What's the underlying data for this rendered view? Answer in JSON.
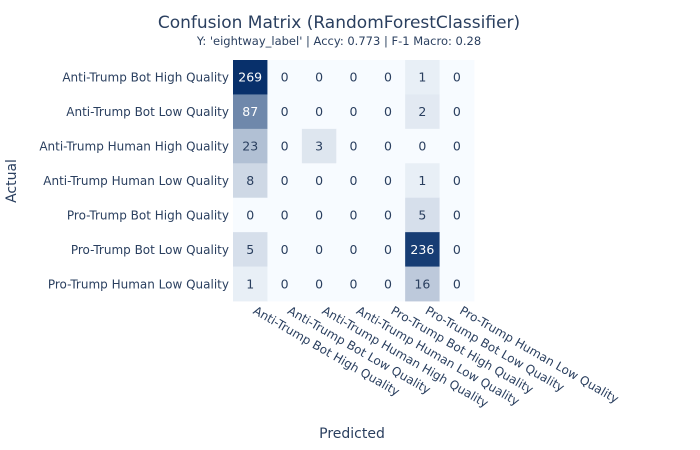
{
  "chart_data": {
    "type": "heatmap",
    "title": "Confusion Matrix (RandomForestClassifier)",
    "subtitle": "Y: 'eightway_label' | Accy: 0.773 | F-1 Macro: 0.28",
    "xlabel": "Predicted",
    "ylabel": "Actual",
    "rows": [
      "Anti-Trump Bot High Quality",
      "Anti-Trump Bot Low Quality",
      "Anti-Trump Human High Quality",
      "Anti-Trump Human Low Quality",
      "Pro-Trump Bot High Quality",
      "Pro-Trump Bot Low Quality",
      "Pro-Trump Human Low Quality"
    ],
    "columns": [
      "Anti-Trump Bot High Quality",
      "Anti-Trump Bot Low Quality",
      "Anti-Trump Human High Quality",
      "Anti-Trump Human Low Quality",
      "Pro-Trump Bot High Quality",
      "Pro-Trump Bot Low Quality",
      "Pro-Trump Human Low Quality"
    ],
    "values": [
      [
        269,
        0,
        0,
        0,
        0,
        1,
        0
      ],
      [
        87,
        0,
        0,
        0,
        0,
        2,
        0
      ],
      [
        23,
        0,
        3,
        0,
        0,
        0,
        0
      ],
      [
        8,
        0,
        0,
        0,
        0,
        1,
        0
      ],
      [
        0,
        0,
        0,
        0,
        0,
        5,
        0
      ],
      [
        5,
        0,
        0,
        0,
        0,
        236,
        0
      ],
      [
        1,
        0,
        0,
        0,
        0,
        16,
        0
      ]
    ],
    "colorscale": {
      "low": "#f7fbff",
      "high": "#08306b"
    },
    "text_dark": "#2a3f5f",
    "text_light": "#ffffff"
  }
}
